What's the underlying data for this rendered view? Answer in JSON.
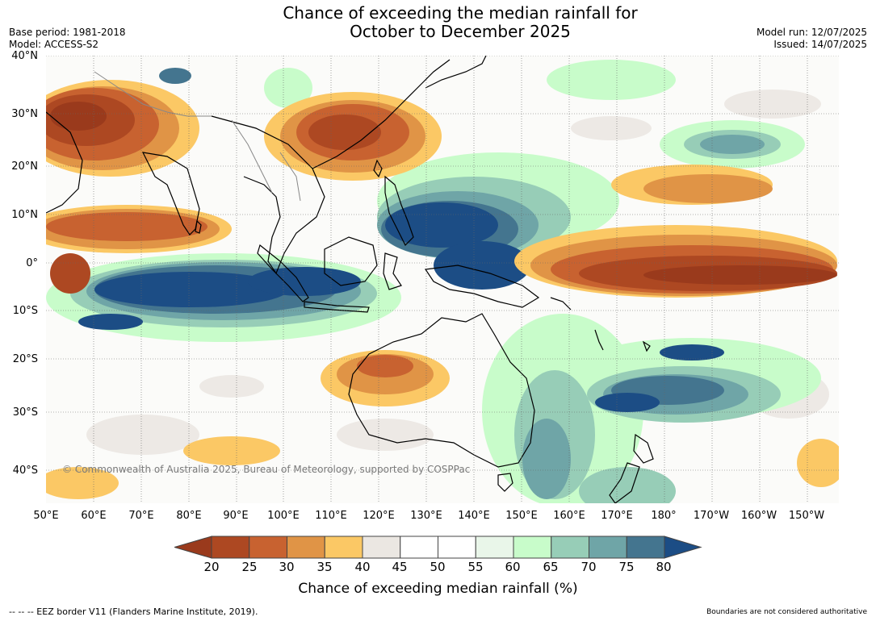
{
  "title": {
    "line1": "Chance of exceeding the median rainfall for",
    "line2": "October to December 2025"
  },
  "meta_left": {
    "base_period": "Base period: 1981-2018",
    "model": "Model: ACCESS-S2"
  },
  "meta_right": {
    "model_run": "Model run: 12/07/2025",
    "issued": "Issued: 14/07/2025"
  },
  "map": {
    "lat_labels": [
      "40°N",
      "30°N",
      "20°N",
      "10°N",
      "0°",
      "10°S",
      "20°S",
      "30°S",
      "40°S"
    ],
    "lon_labels": [
      "50°E",
      "60°E",
      "70°E",
      "80°E",
      "90°E",
      "100°E",
      "110°E",
      "120°E",
      "130°E",
      "140°E",
      "150°E",
      "160°E",
      "170°E",
      "180°",
      "170°W",
      "160°W",
      "150°W"
    ],
    "copyright": "© Commonwealth of Australia 2025, Bureau of Meteorology, supported by COSPPac"
  },
  "colorbar": {
    "ticks": [
      "20",
      "25",
      "30",
      "35",
      "40",
      "45",
      "50",
      "55",
      "60",
      "65",
      "70",
      "75",
      "80"
    ],
    "colors": [
      "#9a3a1c",
      "#ad4822",
      "#c86230",
      "#e09446",
      "#fbc865",
      "#ebe7e2",
      "#ffffff",
      "#ffffff",
      "#e9f6e9",
      "#c8fcca",
      "#97cdb7",
      "#6fa5a7",
      "#44758f",
      "#1c4d85"
    ],
    "label": "Chance of exceeding median rainfall (%)"
  },
  "footer": {
    "eez_note": "--  --  -- EEZ border V11 (Flanders Marine Institute, 2019).",
    "boundaries_note": "Boundaries are not considered authoritative"
  }
}
